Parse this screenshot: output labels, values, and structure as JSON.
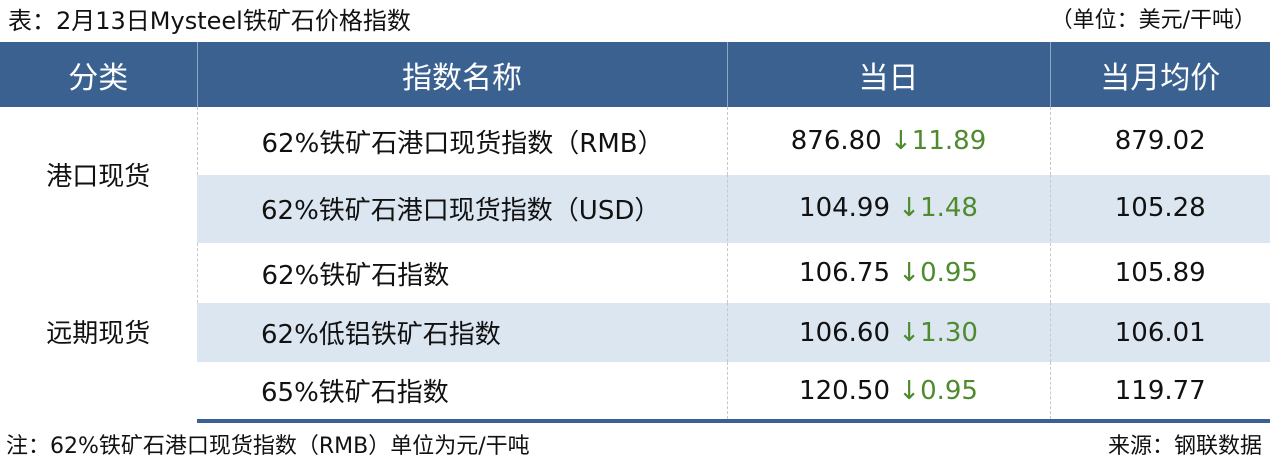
{
  "title": "表：2月13日Mysteel铁矿石价格指数",
  "unit": "（单位：美元/干吨）",
  "headers": [
    "分类",
    "指数名称",
    "当日",
    "当月均价"
  ],
  "groups": [
    {
      "category": "港口现货",
      "rows": [
        {
          "name": "62%铁矿石港口现货指数（RMB）",
          "today": "876.80",
          "direction": "down",
          "arrow": "↓",
          "change": "11.89",
          "monthly_avg": "879.02"
        },
        {
          "name": "62%铁矿石港口现货指数（USD）",
          "today": "104.99",
          "direction": "down",
          "arrow": "↓",
          "change": "1.48",
          "monthly_avg": "105.28"
        }
      ]
    },
    {
      "category": "远期现货",
      "rows": [
        {
          "name": "62%铁矿石指数",
          "today": "106.75",
          "direction": "down",
          "arrow": "↓",
          "change": "0.95",
          "monthly_avg": "105.89"
        },
        {
          "name": "62%低铝铁矿石指数",
          "today": "106.60",
          "direction": "down",
          "arrow": "↓",
          "change": "1.30",
          "monthly_avg": "106.01"
        },
        {
          "name": "65%铁矿石指数",
          "today": "120.50",
          "direction": "down",
          "arrow": "↓",
          "change": "0.95",
          "monthly_avg": "119.77"
        }
      ]
    }
  ],
  "footnote": "注：62%铁矿石港口现货指数（RMB）单位为元/干吨",
  "source": "来源：钢联数据",
  "colors": {
    "header_bg": "#3a6190",
    "stripe": "#dce6f1",
    "down": "#4e8a2e"
  }
}
